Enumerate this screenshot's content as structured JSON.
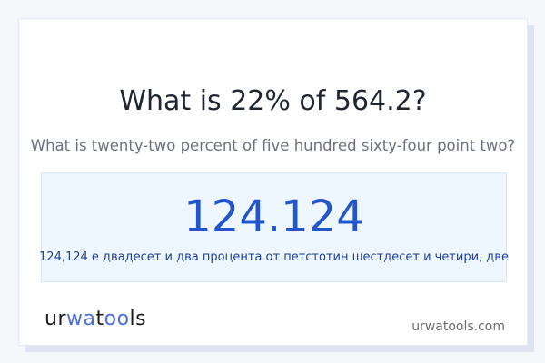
{
  "header": {
    "title": "What is 22% of 564.2?",
    "subtitle": "What is twenty-two percent of five hundred sixty-four point two?"
  },
  "result": {
    "value": "124.124",
    "words": "124,124 е двадесет и два процента от петстотин шестдесет и четири, две"
  },
  "footer": {
    "logo_parts": [
      "ur",
      "wa",
      "t",
      "oo",
      "ls"
    ],
    "site": "urwatools.com"
  },
  "colors": {
    "accent": "#2256cc",
    "result_bg": "#eef6ff"
  }
}
